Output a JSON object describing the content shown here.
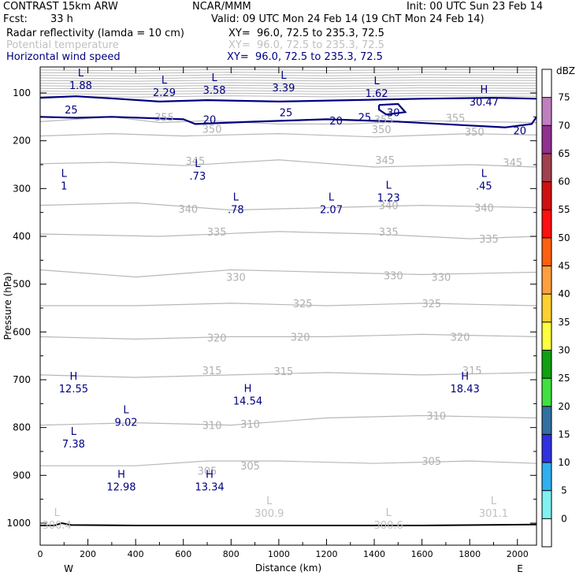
{
  "header": {
    "title": "CONTRAST 15km ARW",
    "center": "NCAR/MMM",
    "init": "Init: 00 UTC Sun 23 Feb 14",
    "fcst_label": "Fcst:",
    "fcst_value": "33 h",
    "valid": "Valid: 09 UTC Mon 24 Feb 14 (19 ChT Mon 24 Feb 14)",
    "fields": [
      {
        "name": "Radar reflectivity (lamda = 10 cm)",
        "xy": "XY=  96.0, 72.5 to 235.3, 72.5",
        "color": "#000000"
      },
      {
        "name": "Potential temperature",
        "xy": "XY=  96.0, 72.5 to 235.3, 72.5",
        "color": "#c0c0c0"
      },
      {
        "name": "Horizontal wind speed",
        "xy": "XY=  96.0, 72.5 to 235.3, 72.5",
        "color": "#000080"
      }
    ]
  },
  "colorbar": {
    "unit": "dBZ",
    "levels": [
      "75",
      "70",
      "65",
      "60",
      "55",
      "50",
      "45",
      "40",
      "35",
      "30",
      "25",
      "20",
      "15",
      "10",
      "5",
      "0"
    ],
    "colors": [
      "#ffffff",
      "#c080c0",
      "#903090",
      "#a04050",
      "#d01010",
      "#ff1010",
      "#ff6010",
      "#ffa040",
      "#ffd030",
      "#ffff40",
      "#10a010",
      "#40e040",
      "#3070a0",
      "#3030e0",
      "#30b0f0",
      "#80f0f0",
      "#ffffff"
    ]
  },
  "chart_data": {
    "type": "contour",
    "xlabel": "Distance (km)",
    "ylabel": "Pressure (hPa)",
    "xlim": [
      0,
      2080
    ],
    "ylim": [
      1050,
      50
    ],
    "x_ticks": [
      "0",
      "200",
      "400",
      "600",
      "800",
      "1000",
      "1200",
      "1400",
      "1600",
      "1800",
      "2000"
    ],
    "y_ticks": [
      "100",
      "200",
      "300",
      "400",
      "500",
      "600",
      "700",
      "800",
      "900",
      "1000"
    ],
    "x_end_labels": {
      "left": "W",
      "right": "E"
    },
    "theta_contours": [
      {
        "label": "355",
        "points": [
          [
            0,
            160
          ],
          [
            300,
            150
          ],
          [
            500,
            162
          ],
          [
            700,
            158
          ],
          [
            1000,
            165
          ],
          [
            1300,
            165
          ],
          [
            1600,
            158
          ],
          [
            2080,
            162
          ]
        ],
        "labels_at": [
          [
            520,
            150
          ],
          [
            1440,
            155
          ],
          [
            1740,
            152
          ]
        ]
      },
      {
        "label": "350",
        "points": [
          [
            0,
            190
          ],
          [
            300,
            185
          ],
          [
            600,
            190
          ],
          [
            1000,
            185
          ],
          [
            1400,
            192
          ],
          [
            1800,
            185
          ],
          [
            2080,
            188
          ]
        ],
        "labels_at": [
          [
            720,
            175
          ],
          [
            1430,
            176
          ],
          [
            1820,
            181
          ]
        ]
      },
      {
        "label": "345",
        "points": [
          [
            0,
            248
          ],
          [
            300,
            245
          ],
          [
            600,
            252
          ],
          [
            1000,
            240
          ],
          [
            1400,
            255
          ],
          [
            1800,
            250
          ],
          [
            2080,
            255
          ]
        ],
        "labels_at": [
          [
            650,
            242
          ],
          [
            1445,
            240
          ],
          [
            1980,
            245
          ]
        ]
      },
      {
        "label": "340",
        "points": [
          [
            0,
            335
          ],
          [
            400,
            330
          ],
          [
            800,
            345
          ],
          [
            1200,
            340
          ],
          [
            1600,
            335
          ],
          [
            2080,
            340
          ]
        ],
        "labels_at": [
          [
            620,
            342
          ],
          [
            1460,
            335
          ],
          [
            1860,
            340
          ]
        ]
      },
      {
        "label": "335",
        "points": [
          [
            0,
            395
          ],
          [
            500,
            400
          ],
          [
            1000,
            390
          ],
          [
            1400,
            395
          ],
          [
            1800,
            405
          ],
          [
            2080,
            400
          ]
        ],
        "labels_at": [
          [
            740,
            390
          ],
          [
            1460,
            390
          ],
          [
            1880,
            405
          ]
        ]
      },
      {
        "label": "330",
        "points": [
          [
            0,
            470
          ],
          [
            400,
            485
          ],
          [
            800,
            470
          ],
          [
            1200,
            475
          ],
          [
            1600,
            480
          ],
          [
            2080,
            475
          ]
        ],
        "labels_at": [
          [
            820,
            485
          ],
          [
            1480,
            482
          ],
          [
            1680,
            485
          ]
        ]
      },
      {
        "label": "325",
        "points": [
          [
            0,
            545
          ],
          [
            400,
            545
          ],
          [
            800,
            540
          ],
          [
            1200,
            545
          ],
          [
            1600,
            540
          ],
          [
            2080,
            545
          ]
        ],
        "labels_at": [
          [
            1100,
            540
          ],
          [
            1640,
            540
          ]
        ]
      },
      {
        "label": "320",
        "points": [
          [
            0,
            610
          ],
          [
            400,
            615
          ],
          [
            800,
            610
          ],
          [
            1200,
            610
          ],
          [
            1600,
            605
          ],
          [
            2080,
            610
          ]
        ],
        "labels_at": [
          [
            740,
            612
          ],
          [
            1090,
            610
          ],
          [
            1760,
            610
          ]
        ]
      },
      {
        "label": "315",
        "points": [
          [
            0,
            690
          ],
          [
            400,
            695
          ],
          [
            800,
            690
          ],
          [
            1200,
            685
          ],
          [
            1600,
            690
          ],
          [
            2080,
            685
          ]
        ],
        "labels_at": [
          [
            720,
            680
          ],
          [
            1020,
            682
          ],
          [
            1810,
            680
          ]
        ]
      },
      {
        "label": "310",
        "points": [
          [
            0,
            795
          ],
          [
            400,
            790
          ],
          [
            800,
            795
          ],
          [
            1200,
            780
          ],
          [
            1600,
            775
          ],
          [
            2080,
            780
          ]
        ],
        "labels_at": [
          [
            720,
            795
          ],
          [
            880,
            792
          ],
          [
            1660,
            775
          ]
        ]
      },
      {
        "label": "305",
        "points": [
          [
            0,
            880
          ],
          [
            400,
            880
          ],
          [
            700,
            870
          ],
          [
            1000,
            870
          ],
          [
            1400,
            875
          ],
          [
            1800,
            870
          ],
          [
            2080,
            875
          ]
        ],
        "labels_at": [
          [
            700,
            890
          ],
          [
            880,
            880
          ],
          [
            1640,
            870
          ]
        ]
      }
    ],
    "wind_contours": [
      {
        "label": "25",
        "points": [
          [
            0,
            110
          ],
          [
            150,
            107
          ],
          [
            320,
            112
          ],
          [
            500,
            118
          ],
          [
            700,
            115
          ],
          [
            1000,
            118
          ],
          [
            1300,
            115
          ],
          [
            1600,
            112
          ],
          [
            1900,
            110
          ],
          [
            2080,
            112
          ]
        ],
        "labels_at": [
          [
            130,
            135
          ],
          [
            1030,
            140
          ],
          [
            1360,
            150
          ]
        ]
      },
      {
        "label": "20",
        "points": [
          [
            0,
            150
          ],
          [
            150,
            152
          ],
          [
            300,
            150
          ],
          [
            600,
            155
          ],
          [
            650,
            165
          ],
          [
            900,
            160
          ],
          [
            1200,
            155
          ],
          [
            1500,
            160
          ],
          [
            1800,
            168
          ],
          [
            1950,
            172
          ],
          [
            2060,
            165
          ],
          [
            2080,
            150
          ]
        ],
        "labels_at": [
          [
            710,
            155
          ],
          [
            1240,
            158
          ],
          [
            2010,
            178
          ]
        ]
      },
      {
        "label": "30",
        "points": [
          [
            1420,
            125
          ],
          [
            1500,
            123
          ],
          [
            1530,
            140
          ],
          [
            1450,
            145
          ],
          [
            1420,
            135
          ],
          [
            1420,
            125
          ]
        ],
        "labels_at": [
          [
            1480,
            140
          ]
        ]
      }
    ],
    "extrema": [
      {
        "x": 170,
        "p": 80,
        "mark": "L",
        "value": "1.88",
        "color": "#000080"
      },
      {
        "x": 520,
        "p": 95,
        "mark": "L",
        "value": "2.29",
        "color": "#000080"
      },
      {
        "x": 730,
        "p": 90,
        "mark": "L",
        "value": "3.58",
        "color": "#000080"
      },
      {
        "x": 1020,
        "p": 85,
        "mark": "L",
        "value": "3.39",
        "color": "#000080"
      },
      {
        "x": 1410,
        "p": 97,
        "mark": "L",
        "value": "1.62",
        "color": "#000080"
      },
      {
        "x": 1860,
        "p": 115,
        "mark": "H",
        "value": "30.47",
        "color": "#000080"
      },
      {
        "x": 100,
        "p": 290,
        "mark": "L",
        "value": "1",
        "color": "#000080"
      },
      {
        "x": 660,
        "p": 270,
        "mark": "L",
        "value": ".73",
        "color": "#000080"
      },
      {
        "x": 820,
        "p": 340,
        "mark": "L",
        "value": ".78",
        "color": "#000080"
      },
      {
        "x": 1220,
        "p": 340,
        "mark": "L",
        "value": "2.07",
        "color": "#000080"
      },
      {
        "x": 1460,
        "p": 315,
        "mark": "L",
        "value": "1.23",
        "color": "#000080"
      },
      {
        "x": 1860,
        "p": 290,
        "mark": "L",
        "value": ".45",
        "color": "#000080"
      },
      {
        "x": 140,
        "p": 715,
        "mark": "H",
        "value": "12.55",
        "color": "#000080"
      },
      {
        "x": 870,
        "p": 740,
        "mark": "H",
        "value": "14.54",
        "color": "#000080"
      },
      {
        "x": 1780,
        "p": 715,
        "mark": "H",
        "value": "18.43",
        "color": "#000080"
      },
      {
        "x": 360,
        "p": 785,
        "mark": "L",
        "value": "9.02",
        "color": "#000080"
      },
      {
        "x": 140,
        "p": 830,
        "mark": "L",
        "value": "7.38",
        "color": "#000080"
      },
      {
        "x": 340,
        "p": 920,
        "mark": "H",
        "value": "12.98",
        "color": "#000080"
      },
      {
        "x": 710,
        "p": 920,
        "mark": "H",
        "value": "13.34",
        "color": "#000080"
      },
      {
        "x": 70,
        "p": 1000,
        "mark": "L",
        "value": "300.4",
        "color": "#c0c0c0"
      },
      {
        "x": 960,
        "p": 975,
        "mark": "L",
        "value": "300.9",
        "color": "#c0c0c0"
      },
      {
        "x": 1460,
        "p": 1000,
        "mark": "L",
        "value": "300.6",
        "color": "#c0c0c0"
      },
      {
        "x": 1900,
        "p": 975,
        "mark": "L",
        "value": "301.1",
        "color": "#c0c0c0"
      }
    ],
    "surface_pressure": [
      [
        0,
        1005
      ],
      [
        60,
        1005
      ],
      [
        90,
        1000
      ],
      [
        130,
        1004
      ],
      [
        400,
        1005
      ],
      [
        1000,
        1005
      ],
      [
        1600,
        1005
      ],
      [
        2080,
        1003
      ]
    ],
    "grid": false
  }
}
